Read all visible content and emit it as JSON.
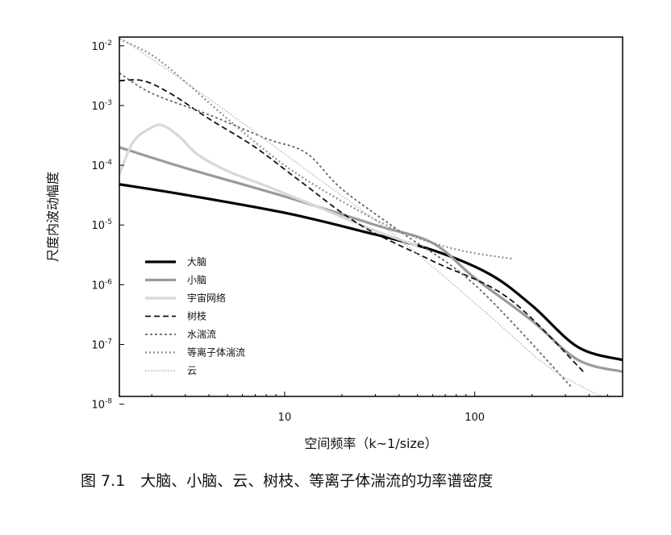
{
  "chart_data": {
    "type": "line",
    "title": "",
    "xlabel": "空间频率（k~1/size）",
    "ylabel": "尺度内波动幅度",
    "x_scale": "log",
    "y_scale": "log",
    "xlim": [
      1.35,
      600
    ],
    "ylim": [
      1.35e-08,
      0.014
    ],
    "grid": false,
    "legend_position": "bottom-left",
    "x_ticks": [
      {
        "value": 10,
        "label": "10"
      },
      {
        "value": 100,
        "label": "100"
      }
    ],
    "y_ticks": [
      {
        "value": 0.01,
        "base": "10",
        "exp": "-2"
      },
      {
        "value": 0.001,
        "base": "10",
        "exp": "-3"
      },
      {
        "value": 0.0001,
        "base": "10",
        "exp": "-4"
      },
      {
        "value": 1e-05,
        "base": "10",
        "exp": "-5"
      },
      {
        "value": 1e-06,
        "base": "10",
        "exp": "-6"
      },
      {
        "value": 1e-07,
        "base": "10",
        "exp": "-7"
      },
      {
        "value": 1e-08,
        "base": "10",
        "exp": "-8"
      }
    ],
    "series": [
      {
        "name": "大脑",
        "color": "#000000",
        "width": 3.2,
        "dash": "",
        "x": [
          1.35,
          3,
          10,
          25,
          60,
          120,
          200,
          350,
          600
        ],
        "y": [
          4.8e-05,
          3.2e-05,
          1.6e-05,
          8e-06,
          3.8e-06,
          1.5e-06,
          4.5e-07,
          9e-08,
          5.5e-08
        ]
      },
      {
        "name": "小脑",
        "color": "#9a9a9a",
        "width": 3.2,
        "dash": "",
        "x": [
          1.35,
          3,
          10,
          30,
          60,
          100,
          200,
          350,
          600
        ],
        "y": [
          0.0002,
          9e-05,
          3e-05,
          1e-05,
          5e-06,
          1.3e-06,
          2.5e-07,
          5.5e-08,
          3.5e-08
        ]
      },
      {
        "name": "宇宙网络",
        "color": "#d8d8d8",
        "width": 3.2,
        "dash": "",
        "x": [
          1.35,
          1.6,
          2,
          2.3,
          2.8,
          3.5,
          5,
          8,
          15,
          30,
          50
        ],
        "y": [
          7e-05,
          0.00025,
          0.00043,
          0.00046,
          0.0003,
          0.00015,
          8e-05,
          4.5e-05,
          2e-05,
          8e-06,
          4.5e-06
        ]
      },
      {
        "name": "树枝",
        "color": "#111111",
        "width": 1.8,
        "dash": "7,4",
        "x": [
          1.35,
          1.8,
          2.5,
          4,
          7,
          12,
          25,
          60,
          150,
          380
        ],
        "y": [
          0.0026,
          0.0026,
          0.0016,
          0.0006,
          0.0002,
          5.5e-05,
          1e-05,
          2.5e-06,
          6e-07,
          3.3e-08
        ]
      },
      {
        "name": "水湍流",
        "color": "#666666",
        "width": 1.8,
        "dash": "3,3",
        "x": [
          1.35,
          2,
          4,
          8,
          13,
          20,
          40,
          100,
          320
        ],
        "y": [
          0.0035,
          0.0016,
          0.0007,
          0.00028,
          0.00016,
          4e-05,
          8e-06,
          1e-06,
          2e-08
        ]
      },
      {
        "name": "等离子体湍流",
        "color": "#8f8f8f",
        "width": 2.2,
        "dash": "2,3",
        "x": [
          1.35,
          2,
          3,
          5,
          10,
          20,
          40,
          80,
          160
        ],
        "y": [
          0.013,
          0.007,
          0.0025,
          0.0006,
          0.0001,
          2.5e-05,
          8e-06,
          3.9e-06,
          2.7e-06
        ]
      },
      {
        "name": "云",
        "color": "#b4b4b4",
        "width": 1.4,
        "dash": "1.5,2",
        "x": [
          1.35,
          2,
          4,
          8,
          15,
          30,
          60,
          120,
          250,
          500
        ],
        "y": [
          0.014,
          0.006,
          0.0013,
          0.00026,
          6e-05,
          1.2e-05,
          2e-06,
          3e-07,
          4e-08,
          1.2e-08
        ]
      }
    ]
  },
  "caption": "图 7.1　大脑、小脑、云、树枝、等离子体湍流的功率谱密度"
}
